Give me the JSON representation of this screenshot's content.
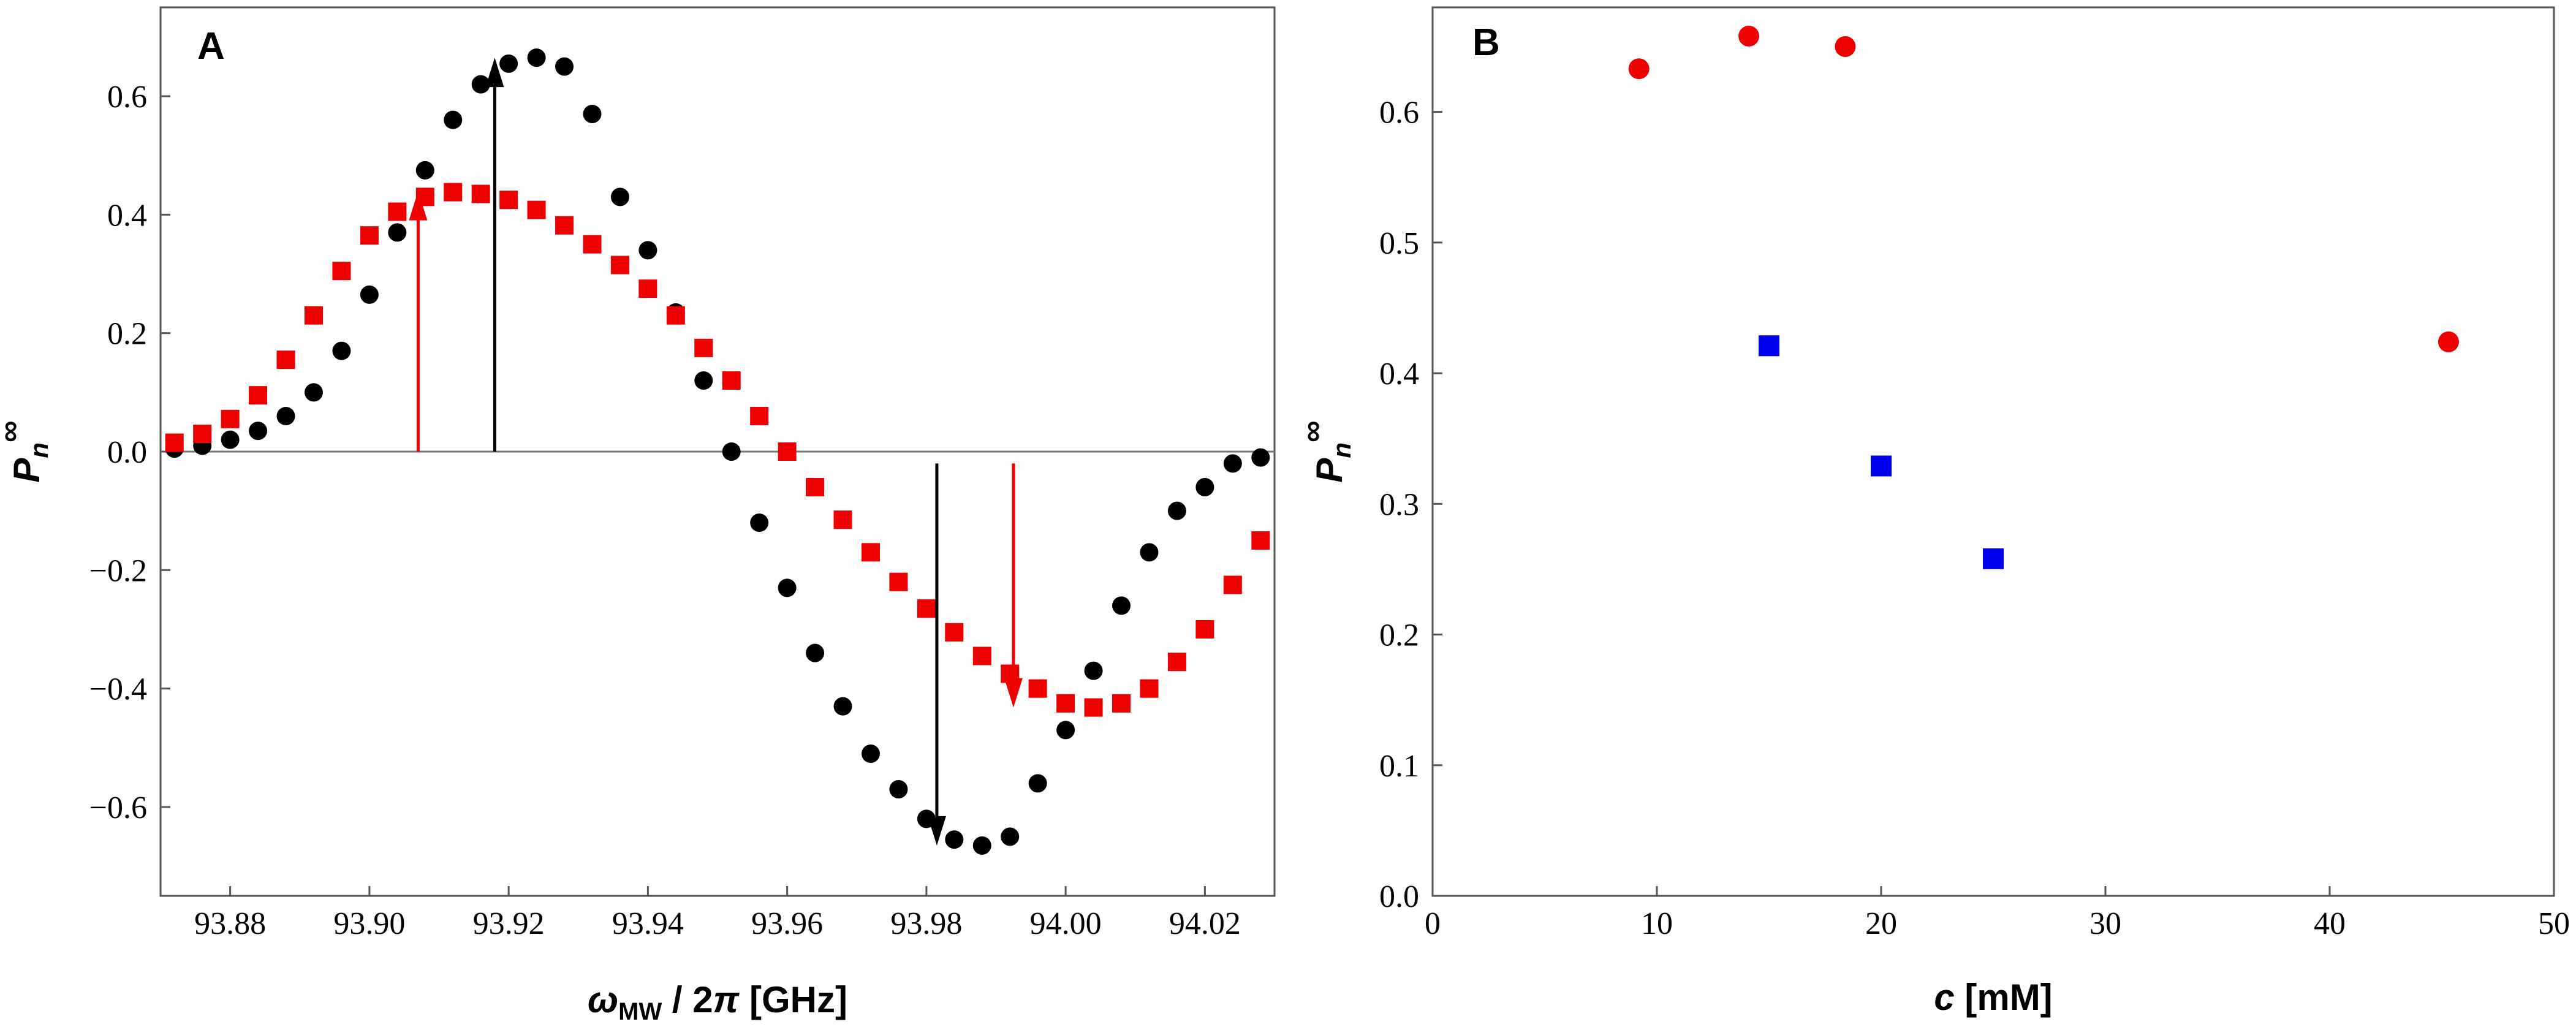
{
  "chart_data": [
    {
      "id": "A",
      "type": "scatter",
      "panel_label": "A",
      "xlabel": "ω_MW / 2π [GHz]",
      "xlabel_parts": {
        "omega": "ω",
        "sub": "MW",
        "rest": " / 2",
        "pi": "π",
        "unit": " [GHz]"
      },
      "ylabel_parts": {
        "base": "P",
        "sub": "n",
        "sup": "∞"
      },
      "xlim": [
        93.87,
        94.03
      ],
      "ylim": [
        -0.75,
        0.75
      ],
      "xticks": [
        93.88,
        93.9,
        93.92,
        93.94,
        93.96,
        93.98,
        94.0,
        94.02
      ],
      "xtick_labels": [
        "93.88",
        "93.90",
        "93.92",
        "93.94",
        "93.96",
        "93.98",
        "94.00",
        "94.02"
      ],
      "yticks": [
        -0.6,
        -0.4,
        -0.2,
        0.0,
        0.2,
        0.4,
        0.6
      ],
      "ytick_labels": [
        "−0.6",
        "−0.4",
        "−0.2",
        "0.0",
        "0.2",
        "0.4",
        "0.6"
      ],
      "series": [
        {
          "name": "black circles",
          "marker": "circle",
          "color": "#000000",
          "x": [
            93.872,
            93.876,
            93.88,
            93.884,
            93.888,
            93.892,
            93.896,
            93.9,
            93.904,
            93.908,
            93.912,
            93.916,
            93.92,
            93.924,
            93.928,
            93.932,
            93.936,
            93.94,
            93.944,
            93.948,
            93.952,
            93.956,
            93.96,
            93.964,
            93.968,
            93.972,
            93.976,
            93.98,
            93.984,
            93.988,
            93.992,
            93.996,
            94.0,
            94.004,
            94.008,
            94.012,
            94.016,
            94.02,
            94.024,
            94.028
          ],
          "y": [
            0.005,
            0.01,
            0.02,
            0.035,
            0.06,
            0.1,
            0.17,
            0.265,
            0.37,
            0.475,
            0.56,
            0.62,
            0.655,
            0.665,
            0.65,
            0.57,
            0.43,
            0.34,
            0.235,
            0.12,
            0.0,
            -0.12,
            -0.23,
            -0.34,
            -0.43,
            -0.51,
            -0.57,
            -0.62,
            -0.655,
            -0.665,
            -0.65,
            -0.56,
            -0.47,
            -0.37,
            -0.26,
            -0.17,
            -0.1,
            -0.06,
            -0.02,
            -0.01
          ]
        },
        {
          "name": "red squares",
          "marker": "square",
          "color": "#ee0000",
          "x": [
            93.872,
            93.876,
            93.88,
            93.884,
            93.888,
            93.892,
            93.896,
            93.9,
            93.904,
            93.908,
            93.912,
            93.916,
            93.92,
            93.924,
            93.928,
            93.932,
            93.936,
            93.94,
            93.944,
            93.948,
            93.952,
            93.956,
            93.96,
            93.964,
            93.968,
            93.972,
            93.976,
            93.98,
            93.984,
            93.988,
            93.992,
            93.996,
            94.0,
            94.004,
            94.008,
            94.012,
            94.016,
            94.02,
            94.024,
            94.028
          ],
          "y": [
            0.015,
            0.03,
            0.055,
            0.095,
            0.155,
            0.23,
            0.305,
            0.365,
            0.405,
            0.43,
            0.438,
            0.435,
            0.425,
            0.408,
            0.382,
            0.35,
            0.315,
            0.275,
            0.23,
            0.175,
            0.12,
            0.06,
            0.0,
            -0.06,
            -0.115,
            -0.17,
            -0.22,
            -0.265,
            -0.305,
            -0.345,
            -0.375,
            -0.4,
            -0.425,
            -0.432,
            -0.425,
            -0.4,
            -0.355,
            -0.3,
            -0.225,
            -0.15
          ]
        }
      ],
      "annotations": [
        {
          "type": "arrow",
          "x": 93.907,
          "y_from": 0.0,
          "y_to": 0.44,
          "color": "#ee0000"
        },
        {
          "type": "arrow",
          "x": 93.918,
          "y_from": 0.0,
          "y_to": 0.665,
          "color": "#000000"
        },
        {
          "type": "arrow",
          "x": 93.9815,
          "y_from": -0.02,
          "y_to": -0.665,
          "color": "#000000"
        },
        {
          "type": "arrow",
          "x": 93.9925,
          "y_from": -0.02,
          "y_to": -0.432,
          "color": "#ee0000"
        }
      ]
    },
    {
      "id": "B",
      "type": "scatter",
      "panel_label": "B",
      "xlabel": "c [mM]",
      "xlabel_parts": {
        "c": "c",
        "unit": " [mM]"
      },
      "ylabel_parts": {
        "base": "P",
        "sub": "n",
        "sup": "∞"
      },
      "xlim": [
        0,
        50
      ],
      "ylim": [
        0.0,
        0.68
      ],
      "xticks": [
        0,
        10,
        20,
        30,
        40,
        50
      ],
      "xtick_labels": [
        "0",
        "10",
        "20",
        "30",
        "40",
        "50"
      ],
      "yticks": [
        0.0,
        0.1,
        0.2,
        0.3,
        0.4,
        0.5,
        0.6
      ],
      "ytick_labels": [
        "0.0",
        "0.1",
        "0.2",
        "0.3",
        "0.4",
        "0.5",
        "0.6"
      ],
      "series": [
        {
          "name": "red circles",
          "marker": "circle",
          "color": "#ee0000",
          "x": [
            9.2,
            14.1,
            18.4,
            45.3
          ],
          "y": [
            0.633,
            0.658,
            0.65,
            0.424
          ]
        },
        {
          "name": "blue squares",
          "marker": "square",
          "color": "#0000ee",
          "x": [
            15.0,
            20.0,
            25.0
          ],
          "y": [
            0.421,
            0.329,
            0.258
          ]
        }
      ]
    }
  ]
}
